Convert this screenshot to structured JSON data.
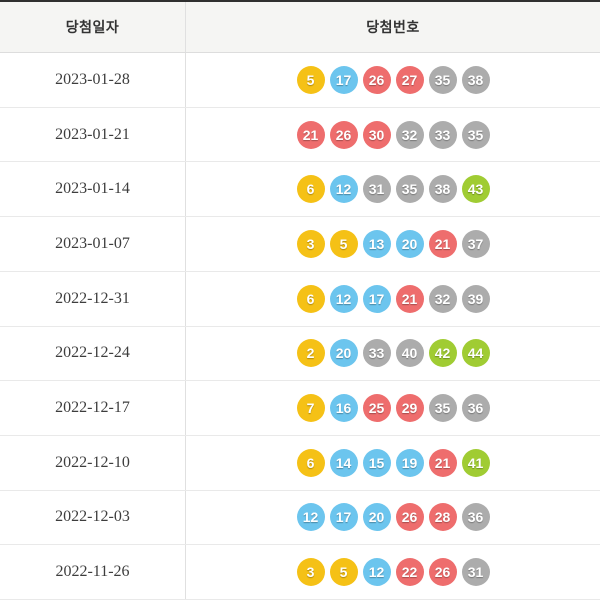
{
  "header": {
    "date_label": "당첨일자",
    "numbers_label": "당첨번호"
  },
  "palette": {
    "yellow": "#f5c116",
    "blue": "#6cc5ee",
    "red": "#ee6d6d",
    "gray": "#acacac",
    "green": "#a0cc33"
  },
  "colors": {
    "top_border": "#2f2f2f",
    "header_bg": "#f5f5f3",
    "row_border": "#e9e9e9",
    "header_text": "#333333",
    "date_text": "#3d3d3d"
  },
  "ball_color_ranges": [
    {
      "min": 1,
      "max": 10,
      "color_key": "yellow"
    },
    {
      "min": 11,
      "max": 20,
      "color_key": "blue"
    },
    {
      "min": 21,
      "max": 30,
      "color_key": "red"
    },
    {
      "min": 31,
      "max": 40,
      "color_key": "gray"
    },
    {
      "min": 41,
      "max": 45,
      "color_key": "green"
    }
  ],
  "rows": [
    {
      "date": "2023-01-28",
      "numbers": [
        5,
        17,
        26,
        27,
        35,
        38
      ]
    },
    {
      "date": "2023-01-21",
      "numbers": [
        21,
        26,
        30,
        32,
        33,
        35
      ]
    },
    {
      "date": "2023-01-14",
      "numbers": [
        6,
        12,
        31,
        35,
        38,
        43
      ]
    },
    {
      "date": "2023-01-07",
      "numbers": [
        3,
        5,
        13,
        20,
        21,
        37
      ]
    },
    {
      "date": "2022-12-31",
      "numbers": [
        6,
        12,
        17,
        21,
        32,
        39
      ]
    },
    {
      "date": "2022-12-24",
      "numbers": [
        2,
        20,
        33,
        40,
        42,
        44
      ]
    },
    {
      "date": "2022-12-17",
      "numbers": [
        7,
        16,
        25,
        29,
        35,
        36
      ]
    },
    {
      "date": "2022-12-10",
      "numbers": [
        6,
        14,
        15,
        19,
        21,
        41
      ]
    },
    {
      "date": "2022-12-03",
      "numbers": [
        12,
        17,
        20,
        26,
        28,
        36
      ]
    },
    {
      "date": "2022-11-26",
      "numbers": [
        3,
        5,
        12,
        22,
        26,
        31
      ]
    }
  ]
}
